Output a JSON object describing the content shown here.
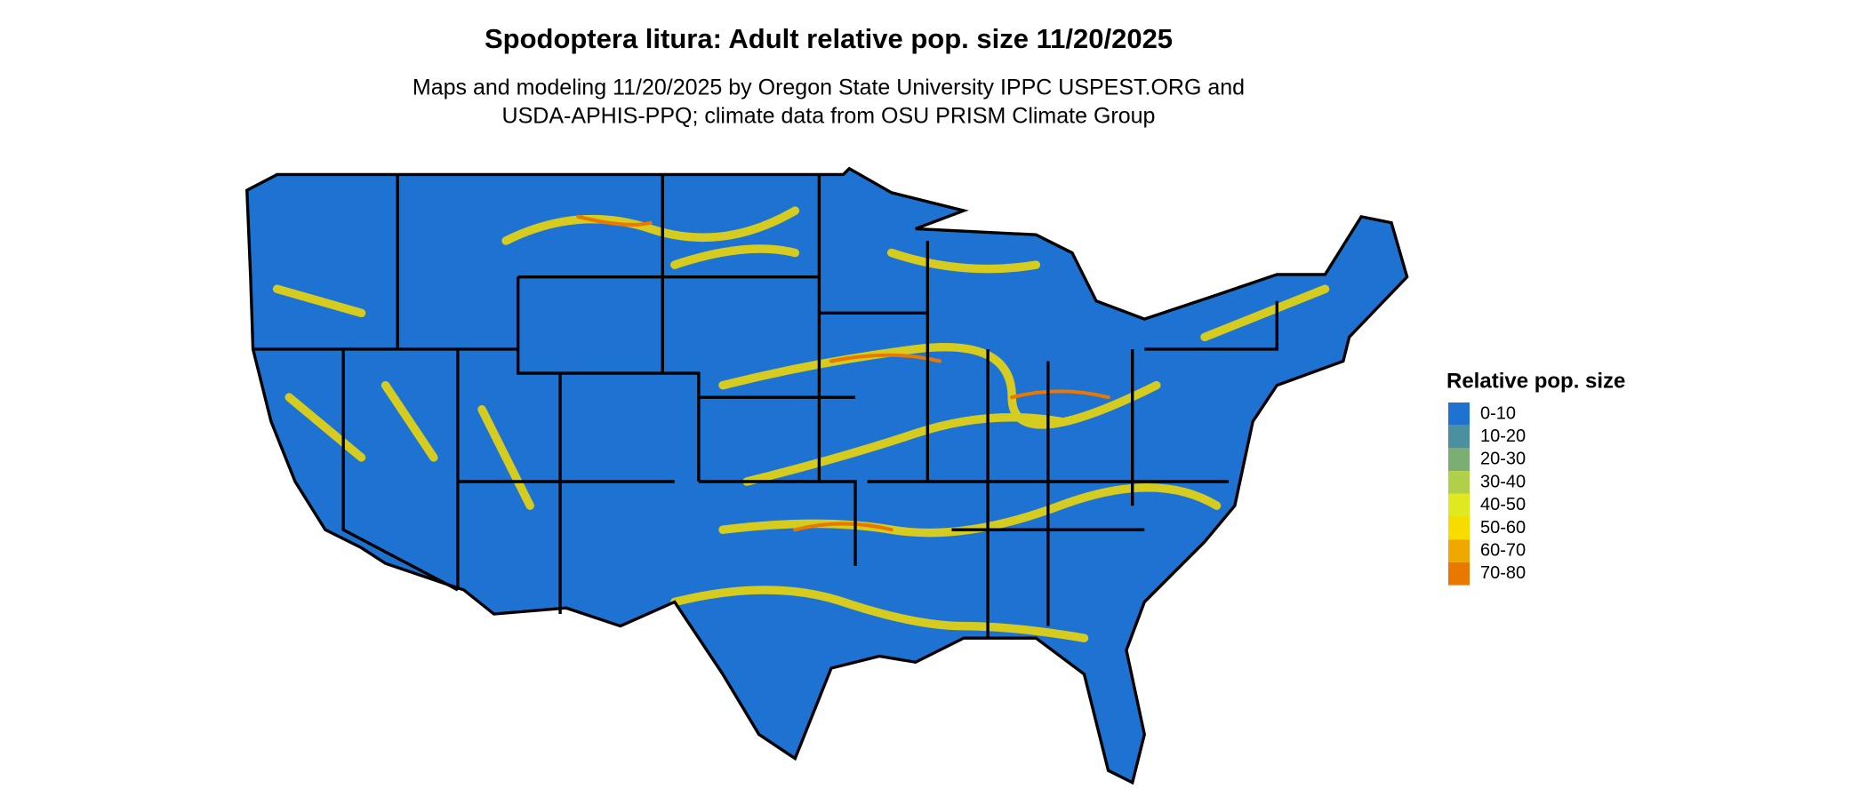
{
  "header": {
    "title": "Spodoptera litura: Adult relative pop. size 11/20/2025",
    "subtitle": [
      "Maps and modeling 11/20/2025 by Oregon State University IPPC USPEST.ORG and",
      "USDA-APHIS-PPQ; climate data from OSU PRISM Climate Group"
    ]
  },
  "legend": {
    "title": "Relative pop. size",
    "items": [
      {
        "label": "0-10",
        "color": "#1e73d2"
      },
      {
        "label": "10-20",
        "color": "#4a90a0"
      },
      {
        "label": "20-30",
        "color": "#7aae72"
      },
      {
        "label": "30-40",
        "color": "#b0d04a"
      },
      {
        "label": "40-50",
        "color": "#e0e820"
      },
      {
        "label": "50-60",
        "color": "#f7dc00"
      },
      {
        "label": "60-70",
        "color": "#f0a800"
      },
      {
        "label": "70-80",
        "color": "#e87800"
      }
    ]
  }
}
